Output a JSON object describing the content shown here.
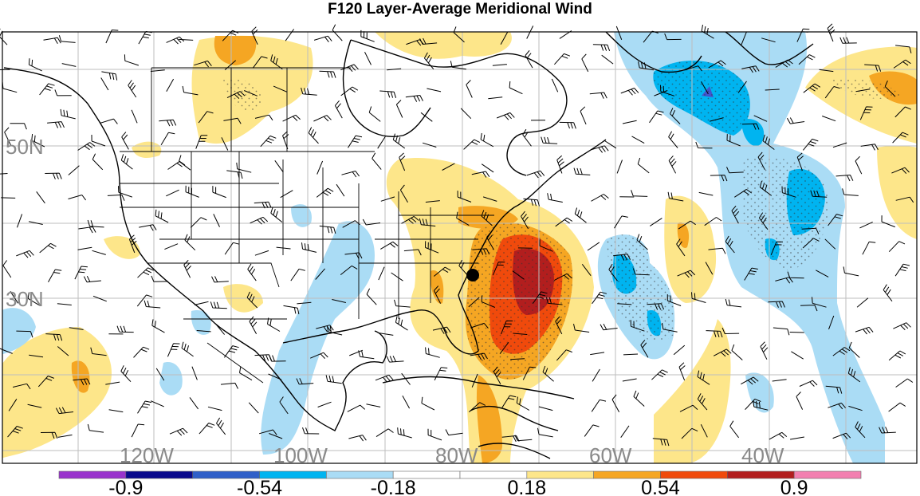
{
  "title": "F120 Layer-Average Meridional Wind",
  "lat_labels": [
    "50N",
    "30N"
  ],
  "lon_labels": [
    "120W",
    "100W",
    "80W",
    "60W",
    "40W"
  ],
  "colorbar": {
    "colors": [
      "#9933cc",
      "#0a0a8c",
      "#2f5fc8",
      "#00b4f0",
      "#aadcf5",
      "#ffffff",
      "#ffffff",
      "#fde68a",
      "#f5a623",
      "#f04a0c",
      "#b21e1e",
      "#f280b0"
    ],
    "labels": [
      "-0.9",
      "-0.54",
      "-0.18",
      "0.18",
      "0.54",
      "0.9"
    ],
    "labels_at_boundaries": [
      1,
      3,
      5,
      7,
      9,
      11
    ]
  },
  "marker": "storm-position-dot"
}
